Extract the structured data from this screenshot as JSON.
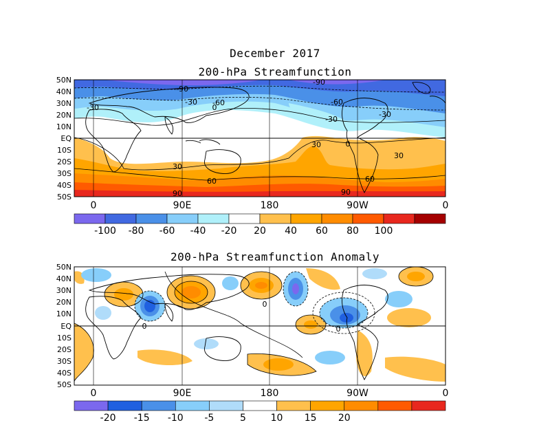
{
  "header": {
    "date": "December 2017",
    "top_title": "200-hPa Streamfunction",
    "bottom_title": "200-hPa Streamfunction Anomaly"
  },
  "lat_labels": [
    "50N",
    "40N",
    "30N",
    "20N",
    "10N",
    "EQ",
    "10S",
    "20S",
    "30S",
    "40S",
    "50S"
  ],
  "lon_labels": [
    "0",
    "90E",
    "180",
    "90W",
    "0"
  ],
  "top_colorbar": {
    "labels": [
      "-100",
      "-80",
      "-60",
      "-40",
      "-20",
      "20",
      "40",
      "60",
      "80",
      "100"
    ],
    "colors": [
      "#7B68EE",
      "#4169E1",
      "#4A90E8",
      "#87CEFA",
      "#B0F0FA",
      "#FFFFFF",
      "#FFC04D",
      "#FFA500",
      "#FF8C00",
      "#FF5A00",
      "#E8281E",
      "#A50000"
    ]
  },
  "bottom_colorbar": {
    "labels": [
      "-20",
      "-15",
      "-10",
      "-5",
      "5",
      "10",
      "15",
      "20"
    ],
    "colors": [
      "#7B68EE",
      "#2060E0",
      "#4A90E8",
      "#87CEFA",
      "#B0DCFA",
      "#FFFFFF",
      "#FFC04D",
      "#FFA500",
      "#FF8C00",
      "#FF5A00",
      "#E8281E"
    ]
  },
  "top_contour_labels": [
    "-90",
    "-90",
    "-60",
    "-30",
    "-60",
    "-30",
    "-30",
    "-30",
    "0",
    "0",
    "30",
    "30",
    "30",
    "60",
    "60",
    "90",
    "90"
  ],
  "bottom_contour_labels": [
    "0",
    "0",
    "0"
  ]
}
